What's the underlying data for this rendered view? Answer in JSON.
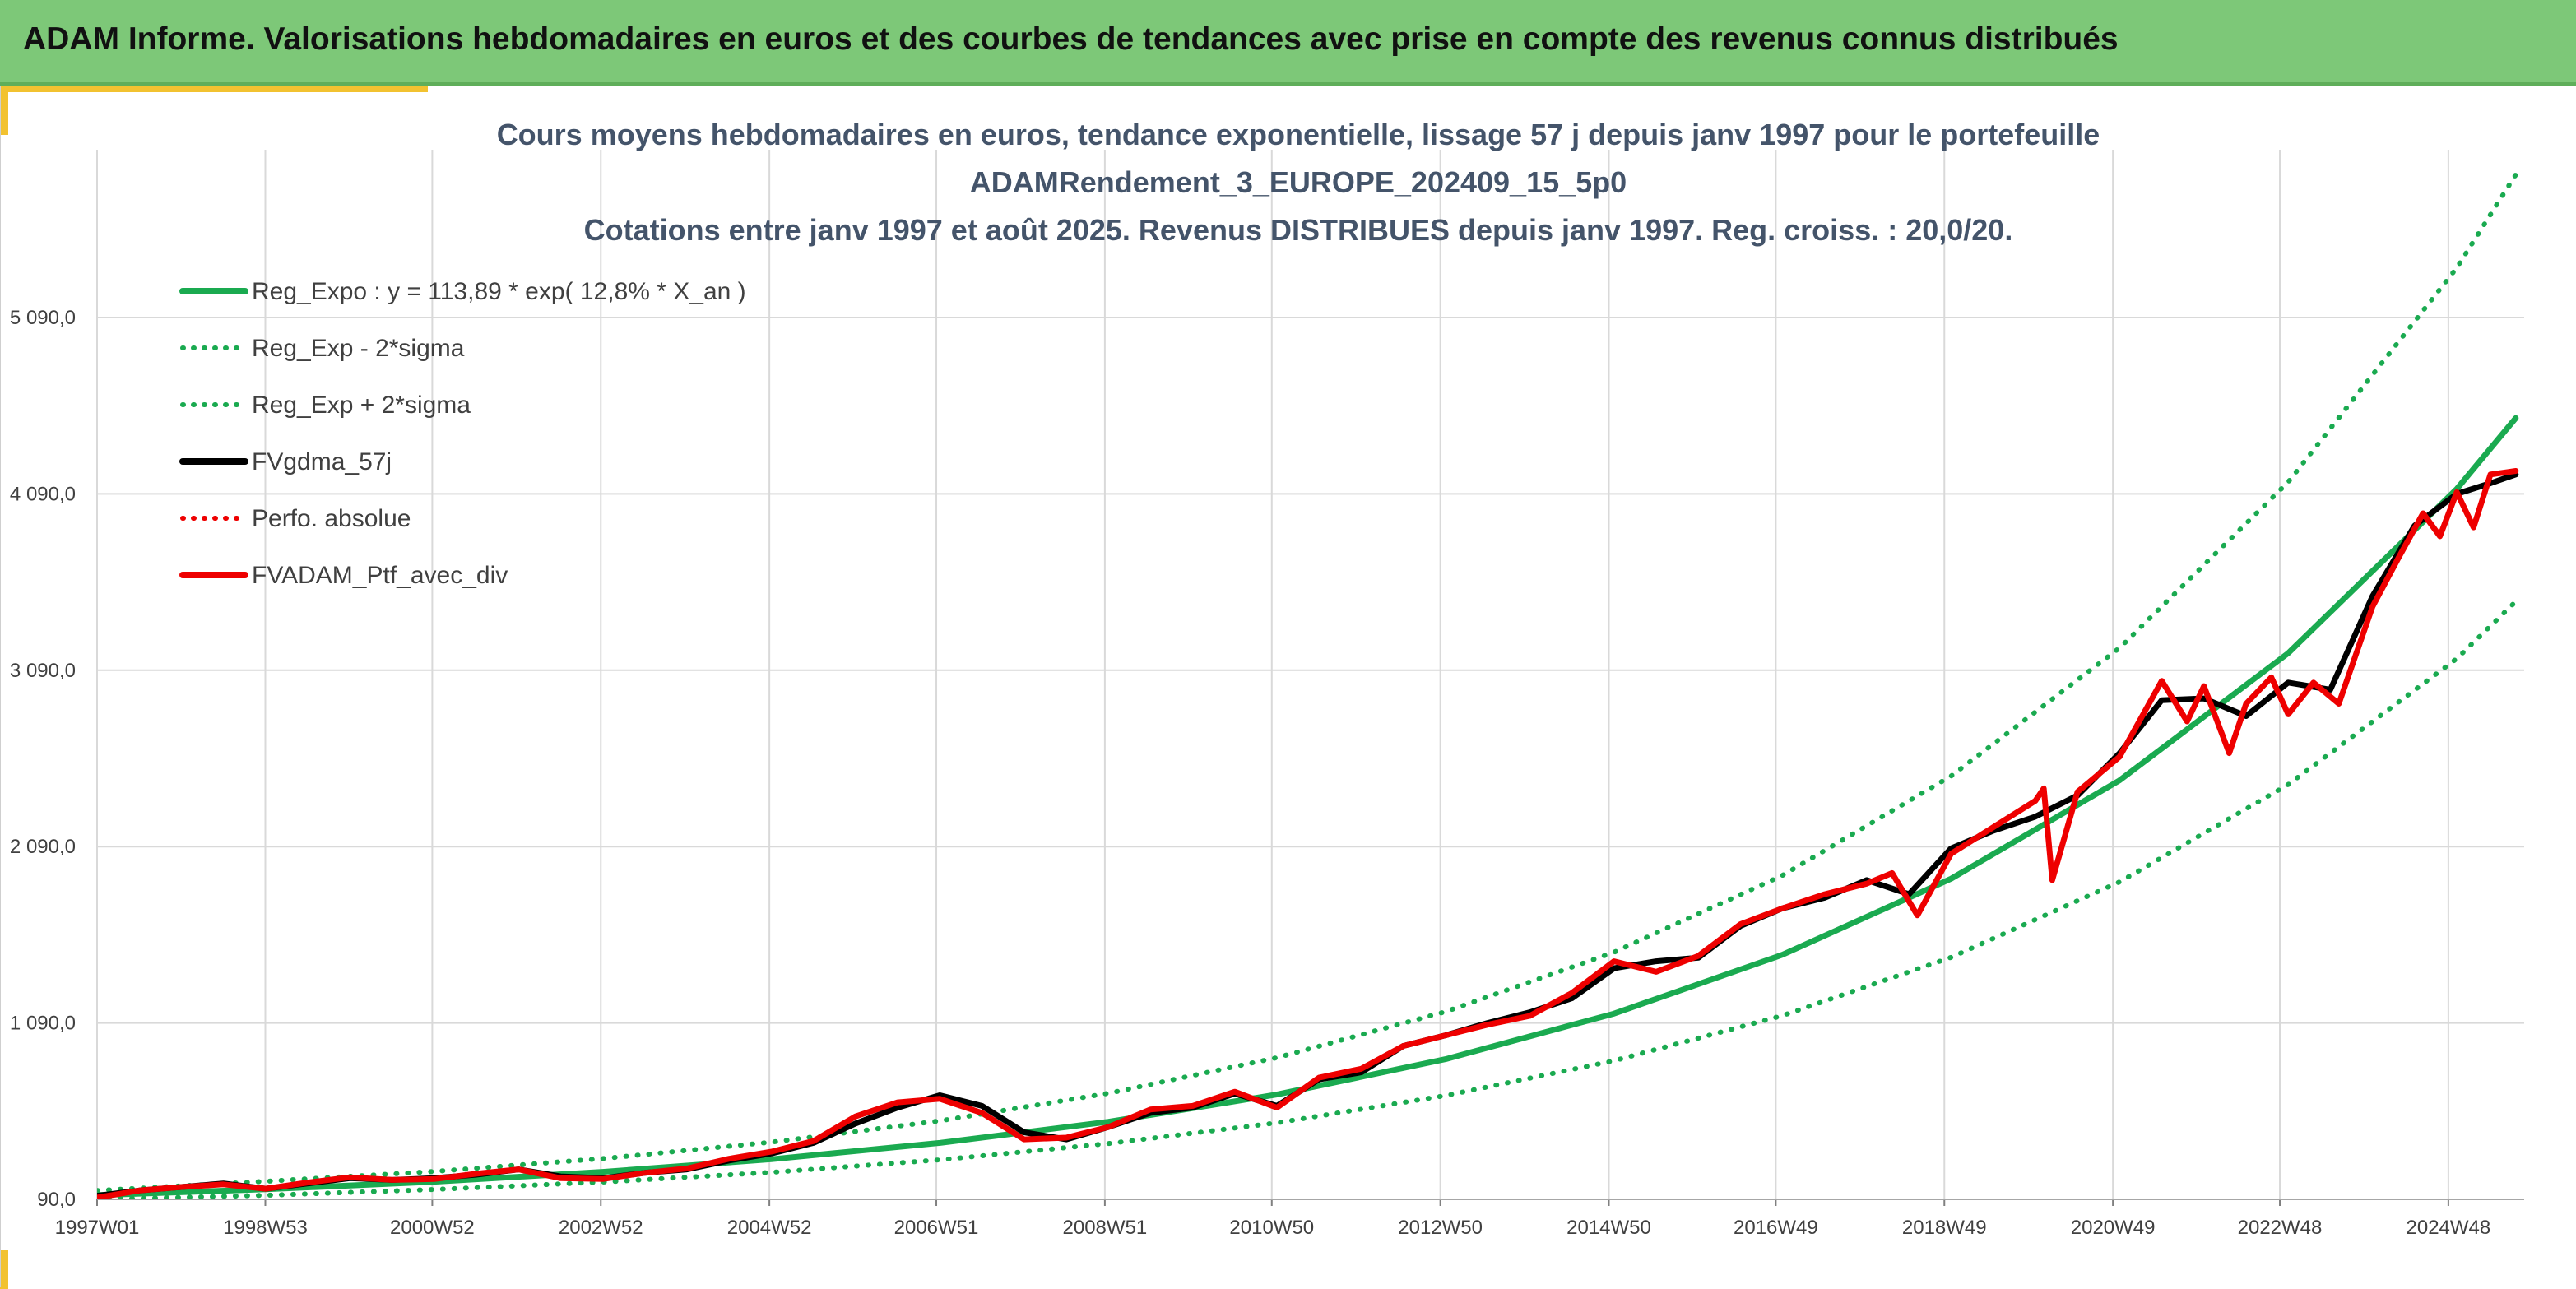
{
  "banner": {
    "title": "ADAM Informe. Valorisations hebdomadaires en euros et des courbes de tendances avec prise en compte des revenus connus distribués"
  },
  "colors": {
    "banner": "#7dc878",
    "accent": "#f2c230",
    "trend": "#1aaa50",
    "smoothed": "#000000",
    "portfolio": "#ee0000",
    "grid": "#d9d9d9"
  },
  "chart_data": {
    "type": "line",
    "title_lines": [
      "Cours moyens hebdomadaires en euros, tendance exponentielle, lissage 57 j depuis janv 1997 pour le portefeuille",
      "ADAMRendement_3_EUROPE_202409_15_5p0",
      "Cotations entre janv 1997 et août 2025. Revenus DISTRIBUES depuis janv 1997. Reg. croiss. : 20,0/20."
    ],
    "x_range": [
      "1997W01",
      "2025W34"
    ],
    "x_ticks": [
      "1997W01",
      "1998W53",
      "2000W52",
      "2002W52",
      "2004W52",
      "2006W51",
      "2008W51",
      "2010W50",
      "2012W50",
      "2014W50",
      "2016W49",
      "2018W49",
      "2020W49",
      "2022W48",
      "2024W48"
    ],
    "y_ticks": [
      "90,0",
      "1 090,0",
      "2 090,0",
      "3 090,0",
      "4 090,0",
      "5 090,0"
    ],
    "ylim": [
      90,
      5090
    ],
    "grid": true,
    "legend_position": "top-left",
    "legend": [
      {
        "label": "Reg_Expo : y = 113,89 * exp( 12,8% *  X_an )",
        "color": "#1aaa50",
        "style": "solid",
        "width": 7
      },
      {
        "label": "Reg_Exp - 2*sigma",
        "color": "#1aaa50",
        "style": "dotted",
        "width": 5
      },
      {
        "label": "Reg_Exp + 2*sigma",
        "color": "#1aaa50",
        "style": "dotted",
        "width": 5
      },
      {
        "label": "FVgdma_57j",
        "color": "#000000",
        "style": "solid",
        "width": 7
      },
      {
        "label": "Perfo. absolue",
        "color": "#ee0000",
        "style": "dotted",
        "width": 5
      },
      {
        "label": "FVADAM_Ptf_avec_div",
        "color": "#ee0000",
        "style": "solid",
        "width": 7
      }
    ],
    "series": [
      {
        "name": "Reg_Expo : y = 113,89 * exp( 12,8% *  X_an )",
        "style": "solid",
        "color": "#1aaa50",
        "x": [
          1997.0,
          1999.0,
          2001.0,
          2003.0,
          2005.0,
          2007.0,
          2009.0,
          2011.0,
          2013.0,
          2015.0,
          2017.0,
          2019.0,
          2021.0,
          2023.0,
          2025.0,
          2025.7
        ],
        "y": [
          114,
          147,
          190,
          246,
          317,
          410,
          530,
          684,
          885,
          1143,
          1477,
          1908,
          2466,
          3187,
          4118,
          4520
        ]
      },
      {
        "name": "Reg_Exp - 2*sigma",
        "style": "dotted",
        "color": "#1aaa50",
        "x": [
          1997.0,
          1999.0,
          2001.0,
          2003.0,
          2005.0,
          2007.0,
          2009.0,
          2011.0,
          2013.0,
          2015.0,
          2017.0,
          2019.0,
          2021.0,
          2023.0,
          2025.0,
          2025.7
        ],
        "y": [
          90,
          113,
          146,
          188,
          243,
          314,
          406,
          524,
          678,
          876,
          1132,
          1462,
          1890,
          2442,
          3156,
          3480
        ]
      },
      {
        "name": "Reg_Exp + 2*sigma",
        "style": "dotted",
        "color": "#1aaa50",
        "x": [
          1997.0,
          1999.0,
          2001.0,
          2003.0,
          2005.0,
          2007.0,
          2009.0,
          2011.0,
          2013.0,
          2015.0,
          2017.0,
          2019.0,
          2021.0,
          2023.0,
          2025.0,
          2025.7
        ],
        "y": [
          140,
          192,
          248,
          321,
          414,
          535,
          691,
          893,
          1154,
          1491,
          1927,
          2490,
          3217,
          4157,
          5372,
          5900
        ]
      },
      {
        "name": "FVgdma_57j",
        "style": "solid",
        "color": "#000000",
        "x": [
          1997.0,
          1997.5,
          1998.0,
          1998.5,
          1999.0,
          1999.5,
          2000.0,
          2000.5,
          2001.0,
          2001.5,
          2002.0,
          2002.5,
          2003.0,
          2003.5,
          2004.0,
          2004.5,
          2005.0,
          2005.5,
          2006.0,
          2006.5,
          2007.0,
          2007.5,
          2008.0,
          2008.5,
          2009.0,
          2009.5,
          2010.0,
          2010.5,
          2011.0,
          2011.5,
          2012.0,
          2012.5,
          2013.0,
          2013.5,
          2014.0,
          2014.5,
          2015.0,
          2015.5,
          2016.0,
          2016.5,
          2017.0,
          2017.5,
          2018.0,
          2018.5,
          2019.0,
          2019.5,
          2020.0,
          2020.5,
          2021.0,
          2021.5,
          2022.0,
          2022.5,
          2023.0,
          2023.5,
          2024.0,
          2024.5,
          2025.0,
          2025.4,
          2025.7
        ],
        "y": [
          110,
          140,
          160,
          180,
          150,
          180,
          210,
          200,
          210,
          230,
          260,
          220,
          210,
          240,
          260,
          310,
          350,
          410,
          520,
          610,
          680,
          620,
          470,
          430,
          500,
          580,
          610,
          690,
          620,
          770,
          810,
          960,
          1020,
          1090,
          1150,
          1230,
          1400,
          1440,
          1460,
          1640,
          1740,
          1800,
          1900,
          1820,
          2080,
          2180,
          2260,
          2380,
          2620,
          2920,
          2930,
          2830,
          3020,
          2980,
          3510,
          3910,
          4090,
          4150,
          4200
        ]
      },
      {
        "name": "FVADAM_Ptf_avec_div",
        "style": "solid",
        "color": "#ee0000",
        "x": [
          1997.0,
          1997.5,
          1998.0,
          1998.5,
          1999.0,
          1999.5,
          2000.0,
          2000.5,
          2001.0,
          2001.5,
          2002.0,
          2002.5,
          2003.0,
          2003.5,
          2004.0,
          2004.5,
          2005.0,
          2005.5,
          2006.0,
          2006.5,
          2007.0,
          2007.5,
          2008.0,
          2008.5,
          2009.0,
          2009.5,
          2010.0,
          2010.5,
          2011.0,
          2011.5,
          2012.0,
          2012.5,
          2013.0,
          2013.5,
          2014.0,
          2014.5,
          2015.0,
          2015.5,
          2016.0,
          2016.5,
          2017.0,
          2017.5,
          2018.0,
          2018.3,
          2018.6,
          2019.0,
          2019.5,
          2020.0,
          2020.1,
          2020.2,
          2020.5,
          2021.0,
          2021.5,
          2021.8,
          2022.0,
          2022.3,
          2022.5,
          2022.8,
          2023.0,
          2023.3,
          2023.6,
          2024.0,
          2024.3,
          2024.6,
          2024.8,
          2025.0,
          2025.2,
          2025.4,
          2025.7
        ],
        "y": [
          100,
          140,
          160,
          175,
          150,
          185,
          215,
          200,
          205,
          235,
          260,
          210,
          205,
          240,
          265,
          320,
          360,
          420,
          560,
          640,
          660,
          580,
          430,
          440,
          500,
          600,
          620,
          700,
          610,
          780,
          830,
          960,
          1020,
          1080,
          1130,
          1260,
          1440,
          1380,
          1470,
          1650,
          1740,
          1820,
          1880,
          1940,
          1700,
          2050,
          2200,
          2350,
          2420,
          1900,
          2400,
          2600,
          3030,
          2800,
          3000,
          2620,
          2900,
          3050,
          2840,
          3020,
          2900,
          3450,
          3720,
          3980,
          3850,
          4100,
          3900,
          4200,
          4220
        ]
      }
    ]
  }
}
